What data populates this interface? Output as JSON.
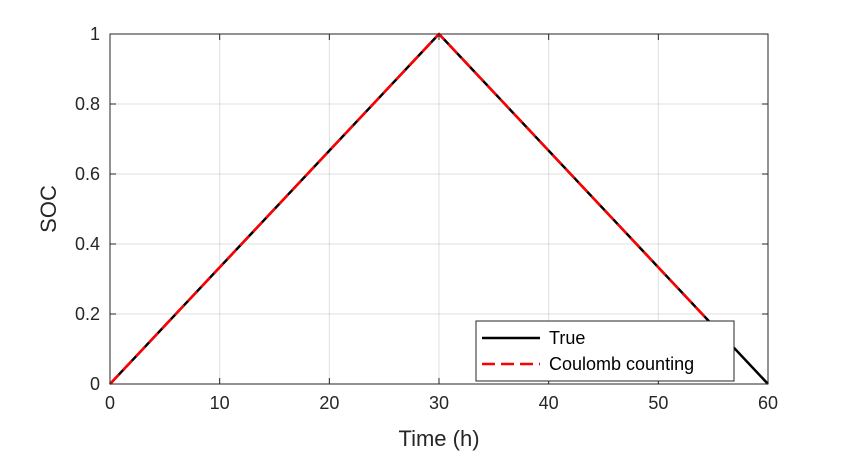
{
  "chart_data": {
    "type": "line",
    "xlabel": "Time (h)",
    "ylabel": "SOC",
    "xlim": [
      0,
      60
    ],
    "ylim": [
      0,
      1
    ],
    "xticks": [
      0,
      10,
      20,
      30,
      40,
      50,
      60
    ],
    "yticks": [
      0,
      0.2,
      0.4,
      0.6,
      0.8,
      1
    ],
    "xtick_labels": [
      "0",
      "10",
      "20",
      "30",
      "40",
      "50",
      "60"
    ],
    "ytick_labels": [
      "0",
      "0.2",
      "0.4",
      "0.6",
      "0.8",
      "1"
    ],
    "grid": true,
    "legend_position": "bottom-right",
    "series": [
      {
        "name": "True",
        "x": [
          0,
          30,
          60
        ],
        "y": [
          0,
          1,
          0
        ],
        "color": "#000000",
        "style": "solid"
      },
      {
        "name": "Coulomb counting",
        "x": [
          0,
          30,
          54.5
        ],
        "y": [
          0,
          1,
          0.183
        ],
        "color": "#ff0000",
        "style": "dashed"
      }
    ]
  }
}
